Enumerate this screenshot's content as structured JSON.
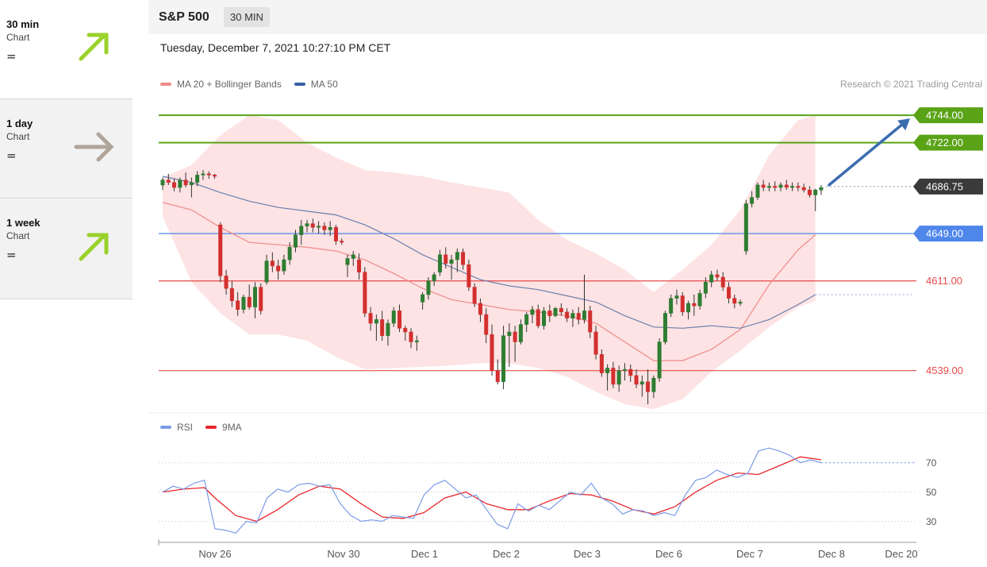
{
  "sidebar": {
    "items": [
      {
        "label": "30 min",
        "sub": "Chart",
        "signal": "=",
        "arrow": "up",
        "arrow_color": "#9ad12b"
      },
      {
        "label": "1 day",
        "sub": "Chart",
        "signal": "=",
        "arrow": "right",
        "arrow_color": "#b0a59a"
      },
      {
        "label": "1 week",
        "sub": "Chart",
        "signal": "=",
        "arrow": "up",
        "arrow_color": "#9ad12b"
      }
    ]
  },
  "header": {
    "instrument": "S&P 500",
    "timeframe": "30 MIN",
    "datetime": "Tuesday, December 7, 2021 10:27:10 PM CET",
    "credit": "Research © 2021 Trading Central"
  },
  "legend": {
    "main": [
      {
        "name": "MA 20 + Bollinger Bands",
        "color": "#f08a8a"
      },
      {
        "name": "MA 50",
        "color": "#3b5fa8"
      }
    ],
    "rsi": [
      {
        "name": "RSI",
        "color": "#7b9be6"
      },
      {
        "name": "9MA",
        "color": "#e8262a"
      }
    ]
  },
  "chart_data": {
    "type": "candlestick",
    "ylim": [
      4505,
      4760
    ],
    "x_labels": [
      "Nov 26",
      "Nov 30",
      "Dec 1",
      "Dec 2",
      "Dec 3",
      "Dec 6",
      "Dec 7",
      "Dec 8",
      "Dec 20"
    ],
    "levels": [
      {
        "value": 4744.0,
        "label": "4744.00",
        "color": "#5aa317",
        "kind": "resistance"
      },
      {
        "value": 4722.0,
        "label": "4722.00",
        "color": "#5aa317",
        "kind": "resistance"
      },
      {
        "value": 4686.75,
        "label": "4686.75",
        "color": "#3a3a3a",
        "kind": "last"
      },
      {
        "value": 4649.0,
        "label": "4649.00",
        "color": "#4e86ea",
        "kind": "pivot"
      },
      {
        "value": 4611.0,
        "label": "4611.00",
        "color": "#e84a4a",
        "kind": "support"
      },
      {
        "value": 4539.0,
        "label": "4539.00",
        "color": "#e84a4a",
        "kind": "support"
      }
    ],
    "colors": {
      "up": "#2e7d32",
      "down": "#d32f2f",
      "band": "#fde3e3",
      "ma20": "#f08a8a",
      "ma50": "#6b7fae",
      "target_arrow": "#3b6db0"
    },
    "candles": [
      [
        4688,
        4694,
        4684,
        4692
      ],
      [
        4692,
        4697,
        4688,
        4690
      ],
      [
        4690,
        4693,
        4683,
        4686
      ],
      [
        4686,
        4694,
        4682,
        4692
      ],
      [
        4692,
        4698,
        4686,
        4688
      ],
      [
        4688,
        4694,
        4678,
        4690
      ],
      [
        4690,
        4699,
        4687,
        4696
      ],
      [
        4696,
        4700,
        4692,
        4697
      ],
      [
        4697,
        4699,
        4693,
        4696
      ],
      [
        4696,
        4697,
        4693,
        4695
      ],
      [
        4656,
        4658,
        4610,
        4615
      ],
      [
        4615,
        4620,
        4600,
        4605
      ],
      [
        4605,
        4611,
        4590,
        4595
      ],
      [
        4595,
        4602,
        4583,
        4588
      ],
      [
        4588,
        4600,
        4585,
        4598
      ],
      [
        4598,
        4608,
        4588,
        4590
      ],
      [
        4590,
        4610,
        4581,
        4606
      ],
      [
        4606,
        4609,
        4584,
        4587
      ],
      [
        4610,
        4632,
        4608,
        4627
      ],
      [
        4627,
        4634,
        4618,
        4623
      ],
      [
        4623,
        4628,
        4612,
        4619
      ],
      [
        4619,
        4632,
        4616,
        4628
      ],
      [
        4628,
        4642,
        4624,
        4638
      ],
      [
        4638,
        4652,
        4634,
        4648
      ],
      [
        4648,
        4660,
        4640,
        4655
      ],
      [
        4655,
        4660,
        4650,
        4657
      ],
      [
        4657,
        4661,
        4650,
        4654
      ],
      [
        4654,
        4659,
        4649,
        4655
      ],
      [
        4655,
        4658,
        4648,
        4652
      ],
      [
        4652,
        4659,
        4647,
        4654
      ],
      [
        4654,
        4656,
        4640,
        4643
      ],
      [
        4643,
        4645,
        4640,
        4642
      ],
      [
        4624,
        4632,
        4614,
        4629
      ],
      [
        4629,
        4635,
        4623,
        4632
      ],
      [
        4628,
        4633,
        4612,
        4618
      ],
      [
        4618,
        4622,
        4582,
        4585
      ],
      [
        4585,
        4590,
        4571,
        4577
      ],
      [
        4577,
        4584,
        4563,
        4580
      ],
      [
        4580,
        4587,
        4563,
        4567
      ],
      [
        4567,
        4580,
        4559,
        4577
      ],
      [
        4577,
        4590,
        4574,
        4587
      ],
      [
        4587,
        4592,
        4570,
        4573
      ],
      [
        4573,
        4575,
        4563,
        4570
      ],
      [
        4570,
        4573,
        4557,
        4562
      ],
      [
        4562,
        4567,
        4555,
        4563
      ],
      [
        4594,
        4602,
        4588,
        4600
      ],
      [
        4600,
        4614,
        4596,
        4611
      ],
      [
        4611,
        4618,
        4607,
        4616
      ],
      [
        4618,
        4636,
        4615,
        4632
      ],
      [
        4632,
        4638,
        4621,
        4625
      ],
      [
        4625,
        4632,
        4612,
        4628
      ],
      [
        4628,
        4637,
        4618,
        4634
      ],
      [
        4634,
        4637,
        4620,
        4624
      ],
      [
        4624,
        4628,
        4603,
        4606
      ],
      [
        4606,
        4609,
        4590,
        4593
      ],
      [
        4593,
        4597,
        4578,
        4584
      ],
      [
        4584,
        4589,
        4561,
        4568
      ],
      [
        4568,
        4576,
        4535,
        4539
      ],
      [
        4539,
        4548,
        4528,
        4530
      ],
      [
        4530,
        4575,
        4524,
        4567
      ],
      [
        4567,
        4577,
        4542,
        4570
      ],
      [
        4570,
        4575,
        4546,
        4562
      ],
      [
        4562,
        4580,
        4560,
        4576
      ],
      [
        4576,
        4586,
        4570,
        4584
      ],
      [
        4584,
        4591,
        4577,
        4588
      ],
      [
        4588,
        4592,
        4573,
        4575
      ],
      [
        4575,
        4590,
        4572,
        4587
      ],
      [
        4587,
        4592,
        4578,
        4583
      ],
      [
        4583,
        4590,
        4582,
        4589
      ],
      [
        4589,
        4593,
        4583,
        4586
      ],
      [
        4586,
        4589,
        4578,
        4581
      ],
      [
        4581,
        4588,
        4574,
        4585
      ],
      [
        4585,
        4590,
        4576,
        4580
      ],
      [
        4580,
        4616,
        4577,
        4587
      ],
      [
        4587,
        4591,
        4565,
        4570
      ],
      [
        4570,
        4575,
        4548,
        4552
      ],
      [
        4552,
        4556,
        4534,
        4537
      ],
      [
        4537,
        4544,
        4523,
        4541
      ],
      [
        4541,
        4546,
        4525,
        4528
      ],
      [
        4528,
        4543,
        4522,
        4539
      ],
      [
        4539,
        4545,
        4531,
        4540
      ],
      [
        4540,
        4544,
        4530,
        4535
      ],
      [
        4535,
        4540,
        4525,
        4528
      ],
      [
        4528,
        4535,
        4518,
        4530
      ],
      [
        4530,
        4540,
        4512,
        4522
      ],
      [
        4522,
        4535,
        4517,
        4533
      ],
      [
        4533,
        4565,
        4530,
        4562
      ],
      [
        4562,
        4587,
        4560,
        4585
      ],
      [
        4585,
        4600,
        4582,
        4597
      ],
      [
        4597,
        4604,
        4592,
        4599
      ],
      [
        4599,
        4602,
        4583,
        4586
      ],
      [
        4586,
        4595,
        4580,
        4593
      ],
      [
        4593,
        4600,
        4583,
        4591
      ],
      [
        4591,
        4604,
        4588,
        4601
      ],
      [
        4601,
        4614,
        4597,
        4610
      ],
      [
        4610,
        4619,
        4606,
        4616
      ],
      [
        4616,
        4620,
        4611,
        4614
      ],
      [
        4614,
        4618,
        4603,
        4606
      ],
      [
        4606,
        4610,
        4593,
        4597
      ],
      [
        4597,
        4600,
        4589,
        4593
      ],
      [
        4593,
        4596,
        4591,
        4594
      ],
      [
        4635,
        4676,
        4632,
        4673
      ],
      [
        4673,
        4683,
        4670,
        4678
      ],
      [
        4678,
        4690,
        4676,
        4688
      ],
      [
        4688,
        4692,
        4683,
        4686
      ],
      [
        4686,
        4690,
        4683,
        4687
      ],
      [
        4687,
        4691,
        4683,
        4686
      ],
      [
        4686,
        4690,
        4683,
        4688
      ],
      [
        4688,
        4692,
        4684,
        4686
      ],
      [
        4686,
        4690,
        4683,
        4687
      ],
      [
        4687,
        4690,
        4683,
        4686
      ],
      [
        4686,
        4689,
        4682,
        4684
      ],
      [
        4684,
        4687,
        4678,
        4680
      ],
      [
        4680,
        4685,
        4667,
        4684
      ],
      [
        4684,
        4688,
        4680,
        4686
      ]
    ],
    "bollinger_upper": [
      [
        0,
        4694
      ],
      [
        5,
        4704
      ],
      [
        10,
        4728
      ],
      [
        15,
        4744
      ],
      [
        20,
        4740
      ],
      [
        25,
        4722
      ],
      [
        30,
        4710
      ],
      [
        35,
        4700
      ],
      [
        40,
        4698
      ],
      [
        45,
        4695
      ],
      [
        50,
        4690
      ],
      [
        55,
        4686
      ],
      [
        60,
        4682
      ],
      [
        65,
        4660
      ],
      [
        70,
        4644
      ],
      [
        75,
        4633
      ],
      [
        80,
        4620
      ],
      [
        85,
        4602
      ],
      [
        90,
        4620
      ],
      [
        95,
        4640
      ],
      [
        100,
        4668
      ],
      [
        105,
        4712
      ],
      [
        110,
        4740
      ],
      [
        113,
        4744
      ]
    ],
    "bollinger_lower": [
      [
        0,
        4663
      ],
      [
        5,
        4610
      ],
      [
        10,
        4585
      ],
      [
        15,
        4568
      ],
      [
        20,
        4568
      ],
      [
        25,
        4563
      ],
      [
        30,
        4550
      ],
      [
        35,
        4540
      ],
      [
        40,
        4541
      ],
      [
        45,
        4542
      ],
      [
        50,
        4543
      ],
      [
        55,
        4545
      ],
      [
        60,
        4545
      ],
      [
        65,
        4541
      ],
      [
        70,
        4534
      ],
      [
        75,
        4522
      ],
      [
        80,
        4512
      ],
      [
        85,
        4508
      ],
      [
        90,
        4516
      ],
      [
        95,
        4538
      ],
      [
        100,
        4555
      ],
      [
        105,
        4574
      ],
      [
        110,
        4590
      ],
      [
        113,
        4595
      ]
    ],
    "ma20": [
      [
        0,
        4674
      ],
      [
        5,
        4668
      ],
      [
        10,
        4654
      ],
      [
        15,
        4642
      ],
      [
        20,
        4640
      ],
      [
        25,
        4638
      ],
      [
        30,
        4635
      ],
      [
        35,
        4628
      ],
      [
        40,
        4617
      ],
      [
        45,
        4605
      ],
      [
        50,
        4596
      ],
      [
        55,
        4592
      ],
      [
        60,
        4588
      ],
      [
        65,
        4586
      ],
      [
        70,
        4583
      ],
      [
        75,
        4577
      ],
      [
        80,
        4562
      ],
      [
        85,
        4547
      ],
      [
        90,
        4547
      ],
      [
        95,
        4556
      ],
      [
        100,
        4572
      ],
      [
        105,
        4608
      ],
      [
        110,
        4636
      ],
      [
        113,
        4648
      ]
    ],
    "ma50": [
      [
        0,
        4695
      ],
      [
        5,
        4690
      ],
      [
        10,
        4682
      ],
      [
        15,
        4675
      ],
      [
        20,
        4670
      ],
      [
        25,
        4667
      ],
      [
        30,
        4664
      ],
      [
        35,
        4656
      ],
      [
        40,
        4645
      ],
      [
        45,
        4632
      ],
      [
        50,
        4622
      ],
      [
        55,
        4612
      ],
      [
        60,
        4607
      ],
      [
        65,
        4604
      ],
      [
        70,
        4599
      ],
      [
        75,
        4594
      ],
      [
        80,
        4583
      ],
      [
        85,
        4574
      ],
      [
        90,
        4573
      ],
      [
        95,
        4575
      ],
      [
        100,
        4573
      ],
      [
        105,
        4580
      ],
      [
        110,
        4592
      ],
      [
        113,
        4600
      ]
    ],
    "ma50_projection": 4600,
    "target": {
      "from_value": 4686.75,
      "to_value": 4744.0
    },
    "rsi": {
      "ylim": [
        20,
        85
      ],
      "ticks": [
        70,
        50,
        30
      ],
      "rsi_values": [
        [
          0,
          50
        ],
        [
          2,
          54
        ],
        [
          4,
          52
        ],
        [
          6,
          56
        ],
        [
          8,
          58
        ],
        [
          10,
          25
        ],
        [
          12,
          24
        ],
        [
          14,
          22
        ],
        [
          16,
          30
        ],
        [
          18,
          29
        ],
        [
          20,
          46
        ],
        [
          22,
          52
        ],
        [
          24,
          50
        ],
        [
          26,
          55
        ],
        [
          28,
          56
        ],
        [
          30,
          54
        ],
        [
          32,
          55
        ],
        [
          34,
          42
        ],
        [
          36,
          34
        ],
        [
          38,
          30
        ],
        [
          40,
          31
        ],
        [
          42,
          30
        ],
        [
          44,
          34
        ],
        [
          46,
          33
        ],
        [
          48,
          32
        ],
        [
          50,
          48
        ],
        [
          52,
          55
        ],
        [
          54,
          58
        ],
        [
          56,
          52
        ],
        [
          58,
          46
        ],
        [
          60,
          48
        ],
        [
          62,
          38
        ],
        [
          64,
          28
        ],
        [
          66,
          25
        ],
        [
          68,
          42
        ],
        [
          70,
          37
        ],
        [
          72,
          41
        ],
        [
          74,
          38
        ],
        [
          76,
          44
        ],
        [
          78,
          50
        ],
        [
          80,
          48
        ],
        [
          82,
          56
        ],
        [
          84,
          46
        ],
        [
          86,
          42
        ],
        [
          88,
          35
        ],
        [
          90,
          38
        ],
        [
          92,
          37
        ],
        [
          94,
          34
        ],
        [
          96,
          36
        ],
        [
          98,
          34
        ],
        [
          100,
          48
        ],
        [
          102,
          58
        ],
        [
          104,
          60
        ],
        [
          106,
          65
        ],
        [
          108,
          62
        ],
        [
          110,
          60
        ],
        [
          112,
          63
        ],
        [
          114,
          78
        ],
        [
          116,
          80
        ],
        [
          118,
          78
        ],
        [
          120,
          75
        ],
        [
          122,
          70
        ],
        [
          124,
          72
        ],
        [
          126,
          70
        ]
      ],
      "ma_values": [
        [
          0,
          50
        ],
        [
          4,
          52
        ],
        [
          8,
          53
        ],
        [
          10,
          46
        ],
        [
          14,
          34
        ],
        [
          18,
          30
        ],
        [
          22,
          38
        ],
        [
          26,
          48
        ],
        [
          30,
          54
        ],
        [
          34,
          52
        ],
        [
          38,
          42
        ],
        [
          42,
          33
        ],
        [
          46,
          32
        ],
        [
          50,
          36
        ],
        [
          54,
          46
        ],
        [
          58,
          50
        ],
        [
          62,
          42
        ],
        [
          66,
          38
        ],
        [
          70,
          38
        ],
        [
          74,
          44
        ],
        [
          78,
          49
        ],
        [
          82,
          48
        ],
        [
          86,
          44
        ],
        [
          90,
          38
        ],
        [
          94,
          35
        ],
        [
          98,
          40
        ],
        [
          102,
          50
        ],
        [
          106,
          58
        ],
        [
          110,
          63
        ],
        [
          114,
          62
        ],
        [
          118,
          68
        ],
        [
          122,
          74
        ],
        [
          126,
          72
        ]
      ]
    }
  }
}
